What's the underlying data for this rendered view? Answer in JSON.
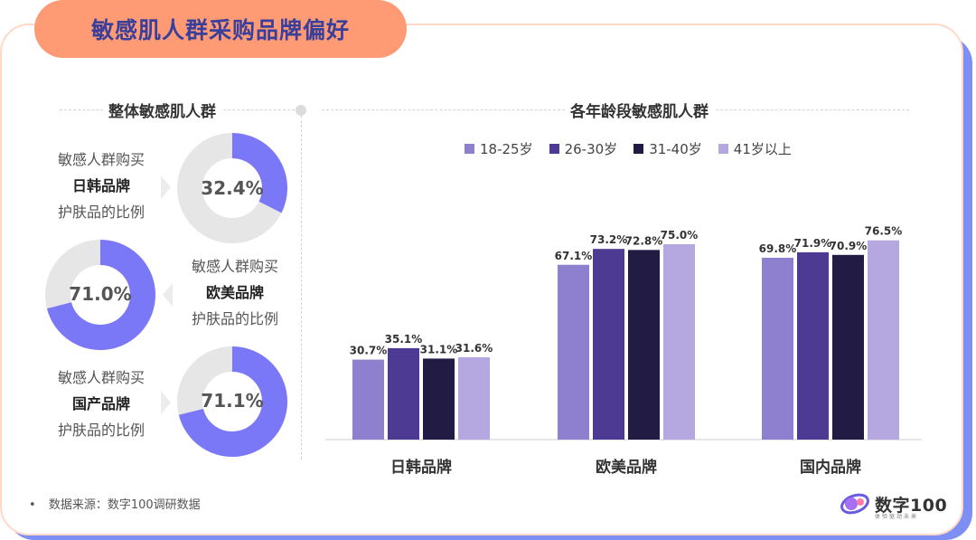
{
  "title": "敏感肌人群采购品牌偏好",
  "left_section": {
    "title": "整体敏感肌人群",
    "donuts": [
      {
        "line1": "敏感人群购买",
        "brand": "日韩品牌",
        "line3": "护肤品的比例",
        "percent": "32.4%",
        "value": 32.4
      },
      {
        "line1": "敏感人群购买",
        "brand": "欧美品牌",
        "line3": "护肤品的比例",
        "percent": "71.0%",
        "value": 71.0
      },
      {
        "line1": "敏感人群购买",
        "brand": "国产品牌",
        "line3": "护肤品的比例",
        "percent": "71.1%",
        "value": 71.1
      }
    ],
    "colors": {
      "fill": "#7b78f7",
      "track": "#e6e6e6"
    }
  },
  "right_section": {
    "title": "各年龄段敏感肌人群"
  },
  "chart_data": {
    "type": "bar",
    "categories": [
      "日韩品牌",
      "欧美品牌",
      "国内品牌"
    ],
    "series": [
      {
        "name": "18-25岁",
        "color": "#8f7fcf",
        "values": [
          30.7,
          67.1,
          69.8
        ],
        "labels": [
          "30.7%",
          "67.1%",
          "69.8%"
        ]
      },
      {
        "name": "26-30岁",
        "color": "#4d3a92",
        "values": [
          35.1,
          73.2,
          71.9
        ],
        "labels": [
          "35.1%",
          "73.2%",
          "71.9%"
        ]
      },
      {
        "name": "31-40岁",
        "color": "#221c44",
        "values": [
          31.1,
          72.8,
          70.9
        ],
        "labels": [
          "31.1%",
          "72.8%",
          "70.9%"
        ]
      },
      {
        "name": "41岁以上",
        "color": "#b5a8e0",
        "values": [
          31.6,
          75.0,
          76.5
        ],
        "labels": [
          "31.6%",
          "75.0%",
          "76.5%"
        ]
      }
    ],
    "ylim": [
      0,
      100
    ],
    "legend": "top"
  },
  "footnote": {
    "bullet": "•",
    "text": "数据来源：数字100调研数据"
  },
  "logo": {
    "name": "数字100",
    "sub": "体验驱动未来"
  }
}
